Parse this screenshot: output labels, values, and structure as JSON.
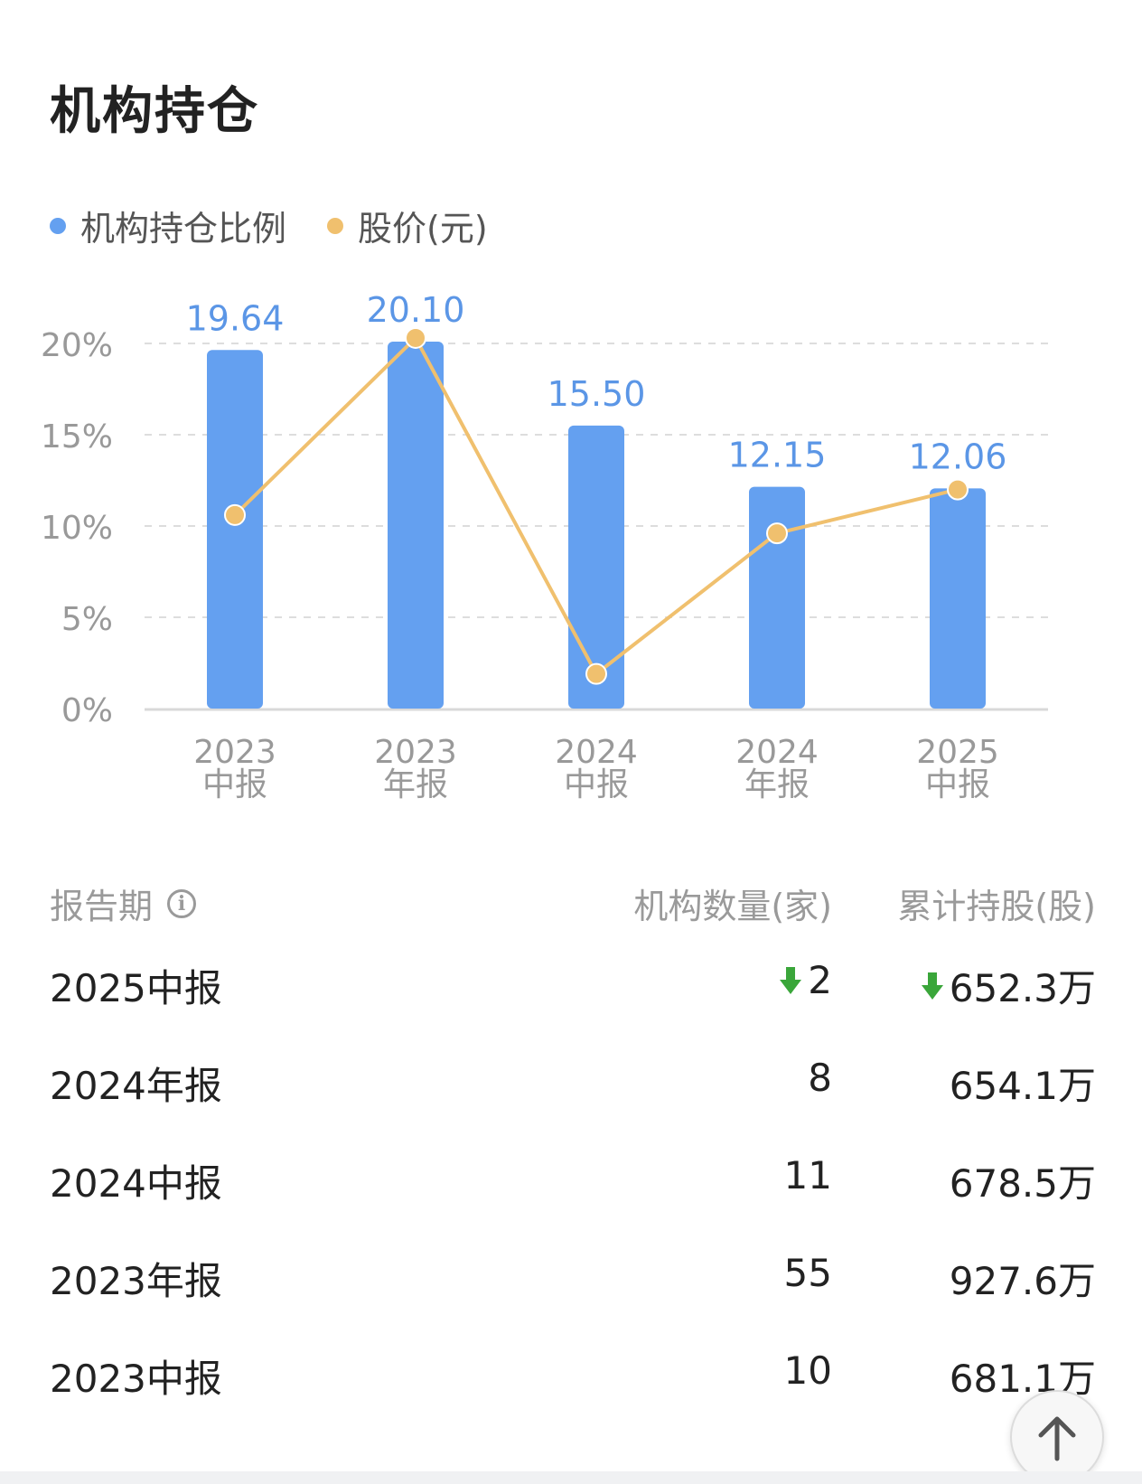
{
  "title": "机构持仓",
  "legend": {
    "ratio_label": "机构持仓比例",
    "price_label": "股价(元)"
  },
  "colors": {
    "bar": "#64a0f0",
    "line": "#f0c06e",
    "down": "#3aa63a",
    "grid": "#dddddd"
  },
  "chart_data": {
    "type": "bar",
    "categories": [
      [
        "2023",
        "中报"
      ],
      [
        "2023",
        "年报"
      ],
      [
        "2024",
        "中报"
      ],
      [
        "2024",
        "年报"
      ],
      [
        "2025",
        "中报"
      ]
    ],
    "series": [
      {
        "name": "机构持仓比例",
        "type": "bar",
        "values": [
          19.64,
          20.1,
          15.5,
          12.15,
          12.06
        ],
        "labels": [
          "19.64",
          "20.10",
          "15.50",
          "12.15",
          "12.06"
        ]
      },
      {
        "name": "股价(元)",
        "type": "line",
        "values": [
          10.6,
          20.3,
          1.9,
          9.6,
          12.0
        ]
      }
    ],
    "ylim": [
      0,
      20
    ],
    "yticks": [
      "0%",
      "5%",
      "10%",
      "15%",
      "20%"
    ],
    "grid": true,
    "legend_position": "top-left"
  },
  "table": {
    "headers": {
      "period": "报告期",
      "count": "机构数量(家)",
      "shares": "累计持股(股)"
    },
    "info_icon": "i",
    "rows": [
      {
        "period": "2025中报",
        "count": "2",
        "shares": "652.3万",
        "count_down": true,
        "shares_down": true
      },
      {
        "period": "2024年报",
        "count": "8",
        "shares": "654.1万",
        "count_down": false,
        "shares_down": false
      },
      {
        "period": "2024中报",
        "count": "11",
        "shares": "678.5万",
        "count_down": false,
        "shares_down": false
      },
      {
        "period": "2023年报",
        "count": "55",
        "shares": "927.6万",
        "count_down": false,
        "shares_down": false
      },
      {
        "period": "2023中报",
        "count": "10",
        "shares": "681.1万",
        "count_down": false,
        "shares_down": false
      }
    ]
  },
  "icons": {
    "info": "info-circle-icon",
    "down": "down-arrow-icon",
    "scroll_top": "arrow-up-icon"
  }
}
